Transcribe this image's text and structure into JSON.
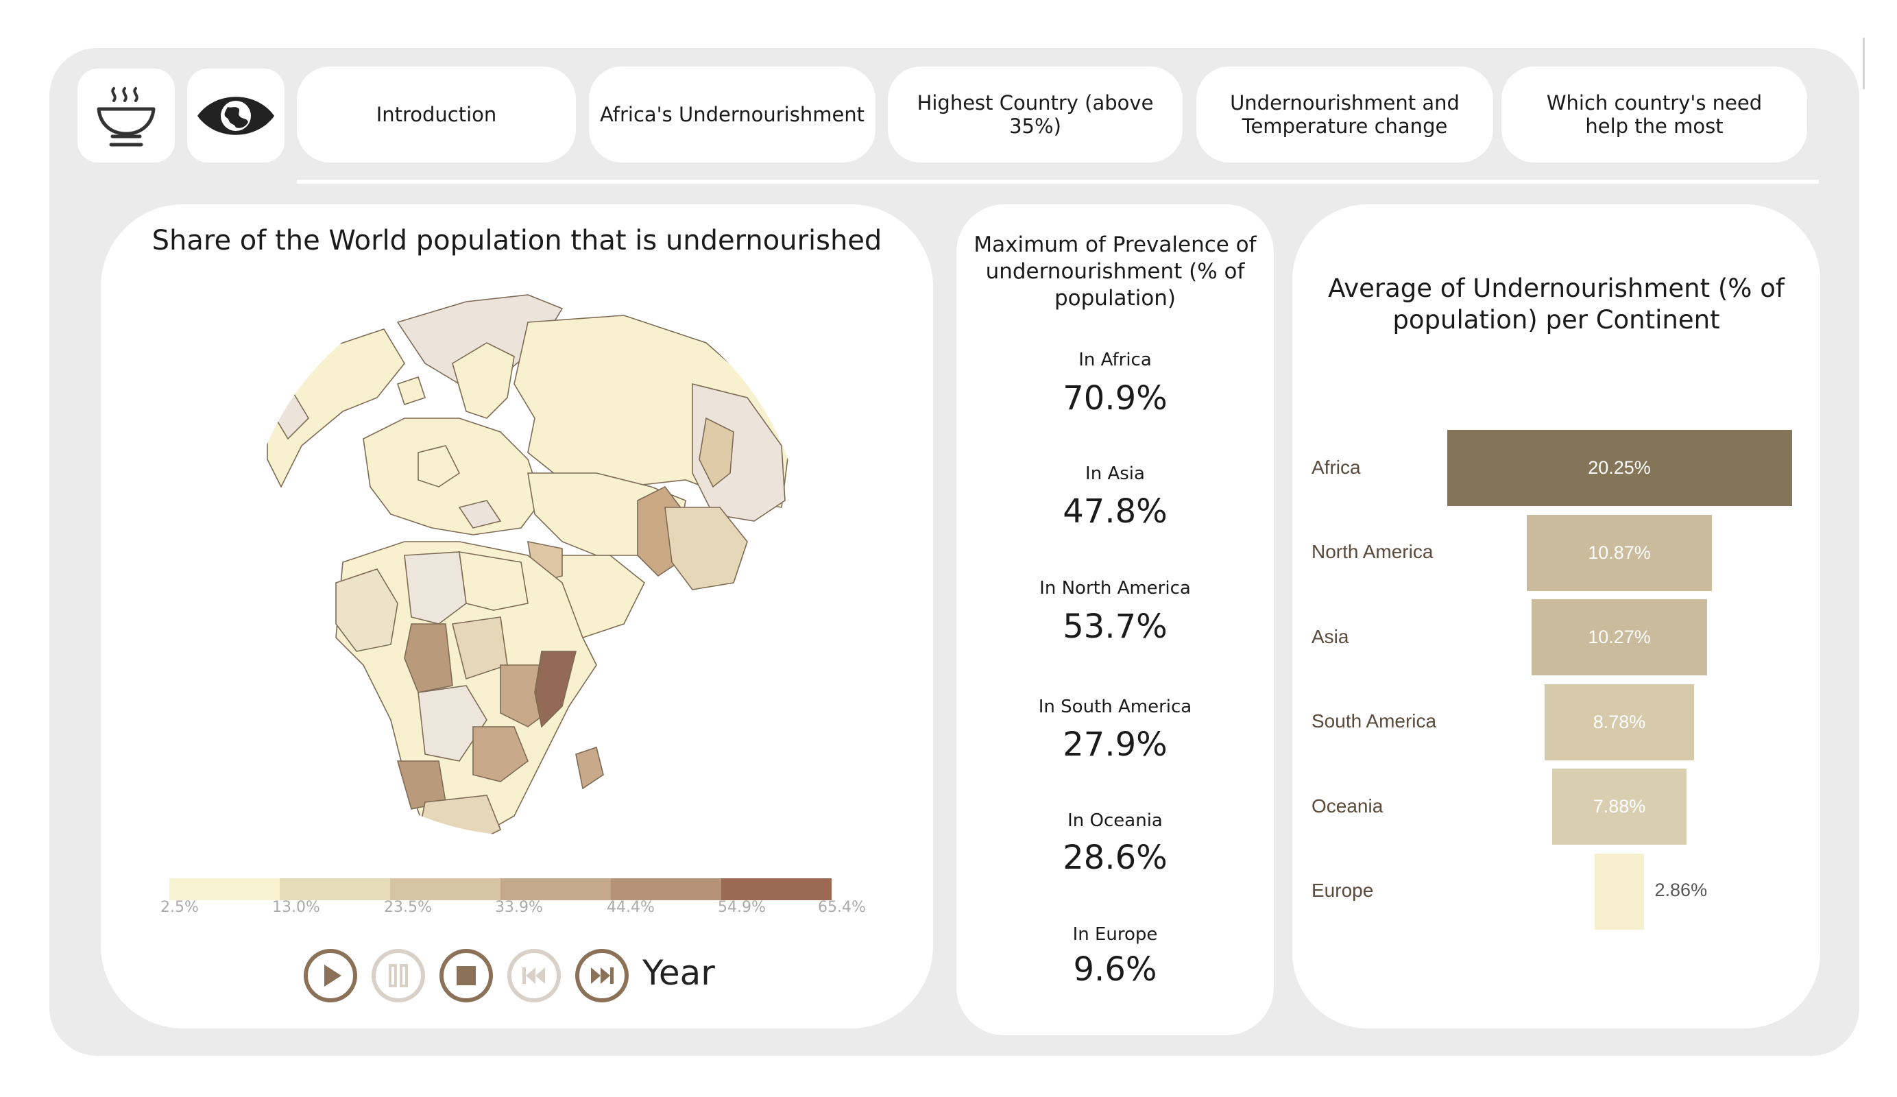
{
  "nav": {
    "tabs": [
      {
        "label": "Introduction"
      },
      {
        "label": "Africa's Undernourishment"
      },
      {
        "label": "Highest Country (above 35%)"
      },
      {
        "label": "Undernourishment and Temperature change"
      },
      {
        "label": "Which country's need help the most"
      }
    ],
    "icons": [
      "bowl-icon",
      "eye-globe-icon"
    ]
  },
  "map": {
    "title": "Share of the World population that is undernourished",
    "legend": [
      "2.5%",
      "13.0%",
      "23.5%",
      "33.9%",
      "44.4%",
      "54.9%",
      "65.4%"
    ],
    "legend_colors": [
      "#f7f2cf",
      "#e7dcb8",
      "#d6c4a2",
      "#c4a98a",
      "#b59376",
      "#a77d64",
      "#9a6a52"
    ],
    "controls": [
      "play-icon",
      "pause-icon",
      "stop-icon",
      "skip-back-icon",
      "skip-forward-icon"
    ],
    "year_label": "Year"
  },
  "stats": {
    "title": "Maximum of Prevalence of undernourishment (% of population)",
    "items": [
      {
        "label": "In Africa",
        "value": "70.9%"
      },
      {
        "label": "In Asia",
        "value": "47.8%"
      },
      {
        "label": "In North America",
        "value": "53.7%"
      },
      {
        "label": "In South America",
        "value": "27.9%"
      },
      {
        "label": "In Oceania",
        "value": "28.6%"
      },
      {
        "label": "In Europe",
        "value": "9.6%"
      }
    ]
  },
  "chart_data": {
    "type": "bar",
    "title": "Average of Undernourishment (% of population) per Continent",
    "categories": [
      "Africa",
      "North America",
      "Asia",
      "South America",
      "Oceania",
      "Europe"
    ],
    "values": [
      20.25,
      10.87,
      10.27,
      8.78,
      7.88,
      2.86
    ],
    "labels": [
      "20.25%",
      "10.87%",
      "10.27%",
      "8.78%",
      "7.88%",
      "2.86%"
    ],
    "colors": [
      "#847458",
      "#c9bb9b",
      "#c9bb9b",
      "#d6caab",
      "#d9ceb0",
      "#f6f0cf"
    ]
  }
}
